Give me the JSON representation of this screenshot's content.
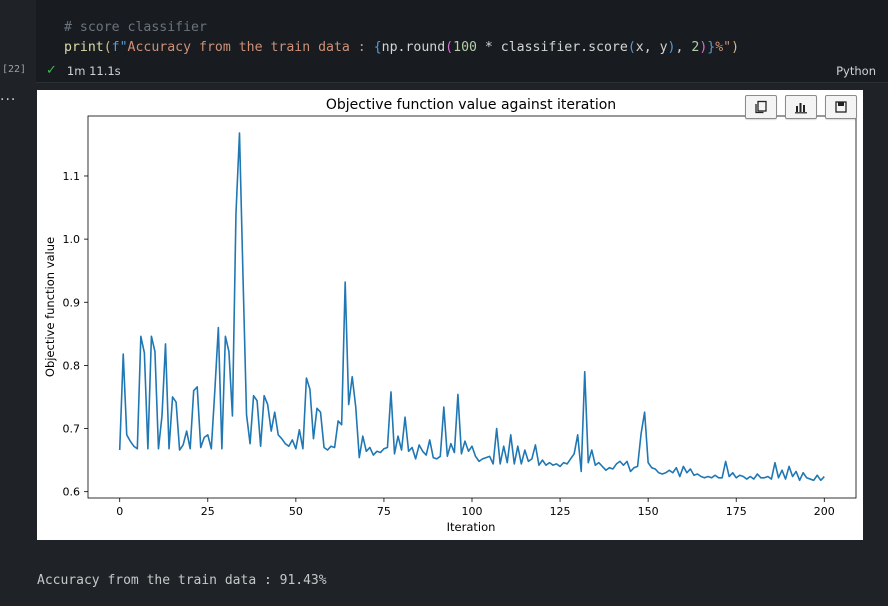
{
  "cell": {
    "comment": "# score classifier",
    "code_fn": "print",
    "code_open": "(",
    "code_fprefix": "f\"",
    "code_str1": "Accuracy from the train data : ",
    "code_brace_open": "{",
    "code_expr1": "np.round",
    "code_p2": "(",
    "code_num1": "100",
    "code_expr2": " * classifier.score",
    "code_p3": "(",
    "code_args": "x, y",
    "code_p3c": ")",
    "code_comma": ", ",
    "code_num2": "2",
    "code_p2c": ")",
    "code_brace_close": "}",
    "code_str2": "%\"",
    "code_close": ")",
    "execution_count": "[22]",
    "exec_time": "1m 11.1s",
    "language": "Python",
    "more": "..."
  },
  "output": {
    "text": "Accuracy from the train data : 91.43%"
  },
  "toolbar": {
    "icons": [
      "copy-icon",
      "bar-chart-icon",
      "save-icon"
    ]
  },
  "chart_data": {
    "type": "line",
    "title": "Objective function value against iteration",
    "xlabel": "Iteration",
    "ylabel": "Objective function value",
    "xlim": [
      -9,
      209
    ],
    "ylim": [
      0.59,
      1.195
    ],
    "xticks": [
      0,
      25,
      50,
      75,
      100,
      125,
      150,
      175,
      200
    ],
    "yticks": [
      0.6,
      0.7,
      0.8,
      0.9,
      1.0,
      1.1
    ],
    "ytick_labels": [
      "0.6",
      "0.7",
      "0.8",
      "0.9",
      "1.0",
      "1.1"
    ],
    "line_color": "#1f77b4",
    "series": [
      {
        "values": [
          0.666,
          0.818,
          0.69,
          0.68,
          0.672,
          0.668,
          0.846,
          0.82,
          0.668,
          0.846,
          0.822,
          0.668,
          0.72,
          0.834,
          0.668,
          0.75,
          0.742,
          0.666,
          0.674,
          0.696,
          0.668,
          0.76,
          0.766,
          0.67,
          0.686,
          0.69,
          0.668,
          0.76,
          0.86,
          0.668,
          0.846,
          0.822,
          0.72,
          1.04,
          1.168,
          0.94,
          0.722,
          0.676,
          0.752,
          0.744,
          0.672,
          0.752,
          0.738,
          0.696,
          0.726,
          0.69,
          0.684,
          0.676,
          0.672,
          0.682,
          0.668,
          0.698,
          0.668,
          0.78,
          0.762,
          0.684,
          0.732,
          0.726,
          0.67,
          0.666,
          0.672,
          0.67,
          0.712,
          0.706,
          0.932,
          0.738,
          0.782,
          0.734,
          0.654,
          0.688,
          0.664,
          0.67,
          0.658,
          0.664,
          0.662,
          0.668,
          0.67,
          0.758,
          0.66,
          0.688,
          0.666,
          0.718,
          0.664,
          0.67,
          0.652,
          0.674,
          0.664,
          0.658,
          0.682,
          0.654,
          0.652,
          0.656,
          0.734,
          0.656,
          0.676,
          0.662,
          0.754,
          0.66,
          0.68,
          0.664,
          0.672,
          0.656,
          0.648,
          0.652,
          0.654,
          0.656,
          0.644,
          0.7,
          0.644,
          0.672,
          0.646,
          0.69,
          0.644,
          0.672,
          0.644,
          0.666,
          0.648,
          0.652,
          0.674,
          0.642,
          0.65,
          0.642,
          0.646,
          0.642,
          0.644,
          0.64,
          0.646,
          0.644,
          0.652,
          0.66,
          0.69,
          0.632,
          0.79,
          0.646,
          0.666,
          0.642,
          0.646,
          0.64,
          0.634,
          0.638,
          0.636,
          0.644,
          0.648,
          0.642,
          0.648,
          0.632,
          0.638,
          0.64,
          0.692,
          0.726,
          0.646,
          0.638,
          0.636,
          0.63,
          0.628,
          0.63,
          0.634,
          0.63,
          0.638,
          0.624,
          0.64,
          0.63,
          0.636,
          0.626,
          0.628,
          0.624,
          0.622,
          0.624,
          0.622,
          0.626,
          0.622,
          0.622,
          0.648,
          0.624,
          0.63,
          0.622,
          0.626,
          0.624,
          0.62,
          0.624,
          0.62,
          0.628,
          0.622,
          0.622,
          0.624,
          0.62,
          0.646,
          0.622,
          0.634,
          0.62,
          0.64,
          0.624,
          0.632,
          0.618,
          0.63,
          0.622,
          0.62,
          0.618,
          0.626,
          0.618,
          0.624
        ]
      }
    ],
    "grid": false
  }
}
